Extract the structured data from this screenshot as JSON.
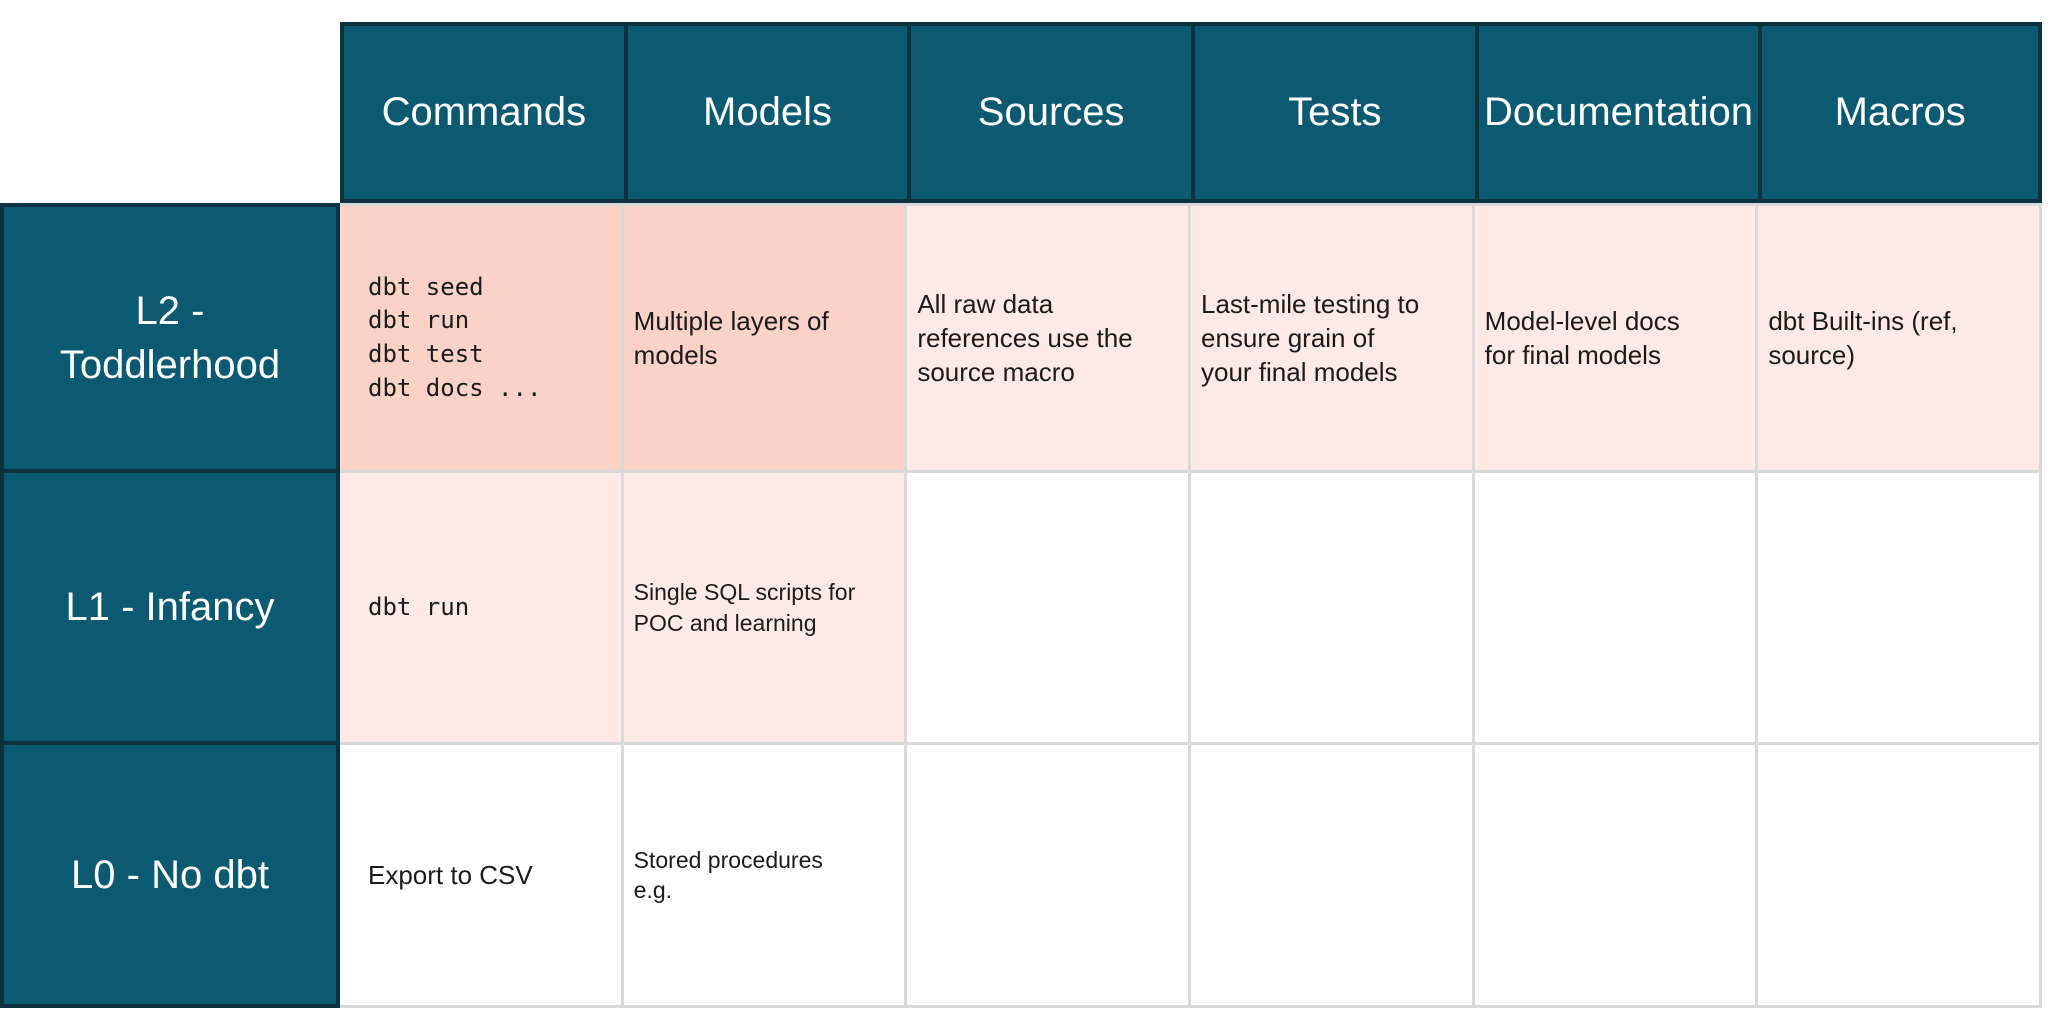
{
  "table": {
    "columns": [
      "Commands",
      "Models",
      "Sources",
      "Tests",
      "Documentation",
      "Macros"
    ],
    "rows": [
      {
        "label": "L2 -\nToddlerhood",
        "cells": [
          {
            "text": "dbt seed\ndbt run\ndbt test\ndbt docs ..."
          },
          {
            "text": "Multiple layers of\nmodels"
          },
          {
            "text": "All raw data\nreferences use the\nsource macro"
          },
          {
            "text": "Last-mile testing to\nensure grain of\nyour final models"
          },
          {
            "text": "Model-level docs\nfor final models"
          },
          {
            "text": "dbt Built-ins (ref,\nsource)"
          }
        ]
      },
      {
        "label": "L1 - Infancy",
        "cells": [
          {
            "text": "dbt run"
          },
          {
            "text": "Single SQL scripts for\nPOC and learning"
          },
          {
            "text": ""
          },
          {
            "text": ""
          },
          {
            "text": ""
          },
          {
            "text": ""
          }
        ]
      },
      {
        "label": "L0 - No dbt",
        "cells": [
          {
            "text": "Export to CSV"
          },
          {
            "text": "Stored procedures\ne.g."
          },
          {
            "text": ""
          },
          {
            "text": ""
          },
          {
            "text": ""
          },
          {
            "text": ""
          }
        ]
      }
    ],
    "colors": {
      "header_teal": "#0B5A71",
      "dark_border": "#0C3240",
      "cell_pink_strong": "#FAD2C8",
      "cell_pink_light": "#FDE9E5",
      "grid_border": "#D9D9D9",
      "text_dark": "#1B1B1B",
      "text_white": "#FFFFFF"
    }
  },
  "chart_data": {
    "type": "table",
    "columns": [
      "",
      "Commands",
      "Models",
      "Sources",
      "Tests",
      "Documentation",
      "Macros"
    ],
    "rows": [
      [
        "L2 - Toddlerhood",
        "dbt seed\ndbt run\ndbt test\ndbt docs ...",
        "Multiple layers of models",
        "All raw data references use the source macro",
        "Last-mile testing to ensure grain of your final models",
        "Model-level docs for final models",
        "dbt Built-ins (ref, source)"
      ],
      [
        "L1 - Infancy",
        "dbt run",
        "Single SQL scripts for POC and learning",
        "",
        "",
        "",
        ""
      ],
      [
        "L0 - No dbt",
        "Export to CSV",
        "Stored procedures e.g.",
        "",
        "",
        "",
        ""
      ]
    ]
  }
}
